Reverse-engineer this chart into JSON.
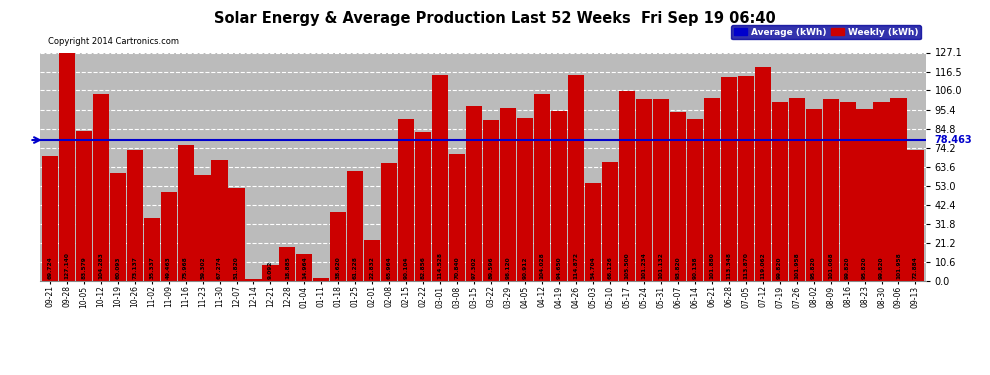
{
  "title": "Solar Energy & Average Production Last 52 Weeks  Fri Sep 19 06:40",
  "copyright": "Copyright 2014 Cartronics.com",
  "average_label": "Average (kWh)",
  "weekly_label": "Weekly (kWh)",
  "average_value": 78.463,
  "ylim": [
    0.0,
    127.1
  ],
  "yticks": [
    0.0,
    10.6,
    21.2,
    31.8,
    42.4,
    53.0,
    63.6,
    74.2,
    84.8,
    95.4,
    106.0,
    116.5,
    127.1
  ],
  "bar_color": "#CC0000",
  "avg_line_color": "#0000CC",
  "background_color": "#FFFFFF",
  "plot_bg_color": "#BBBBBB",
  "grid_color": "#FFFFFF",
  "bar_edge_color": "#880000",
  "categories": [
    "09-21",
    "09-28",
    "10-05",
    "10-12",
    "10-19",
    "10-26",
    "11-02",
    "11-09",
    "11-16",
    "11-23",
    "11-30",
    "12-07",
    "12-14",
    "12-21",
    "12-28",
    "01-04",
    "01-11",
    "01-18",
    "01-25",
    "02-01",
    "02-08",
    "02-15",
    "02-22",
    "03-01",
    "03-08",
    "03-15",
    "03-22",
    "03-29",
    "04-05",
    "04-12",
    "04-19",
    "04-26",
    "05-03",
    "05-10",
    "05-17",
    "05-24",
    "05-31",
    "06-07",
    "06-14",
    "06-21",
    "06-28",
    "07-05",
    "07-12",
    "07-19",
    "07-26",
    "08-02",
    "08-09",
    "08-16",
    "08-23",
    "08-30",
    "09-06",
    "09-13"
  ],
  "values": [
    69.724,
    127.14,
    83.579,
    104.283,
    60.093,
    73.137,
    35.337,
    49.463,
    75.968,
    59.302,
    67.274,
    51.82,
    1.053,
    9.092,
    18.885,
    14.964,
    1.752,
    38.62,
    61.228,
    22.832,
    65.964,
    90.104,
    82.856,
    114.528,
    70.84,
    97.302,
    89.596,
    96.12,
    90.912,
    104.028,
    94.65,
    114.872,
    54.704,
    66.126,
    105.5,
    101.234,
    101.132,
    93.82,
    90.138,
    101.88,
    113.348,
    113.87,
    119.062,
    99.82,
    101.958,
    95.82,
    101.068,
    99.82,
    95.82,
    99.82,
    101.958,
    72.884
  ]
}
